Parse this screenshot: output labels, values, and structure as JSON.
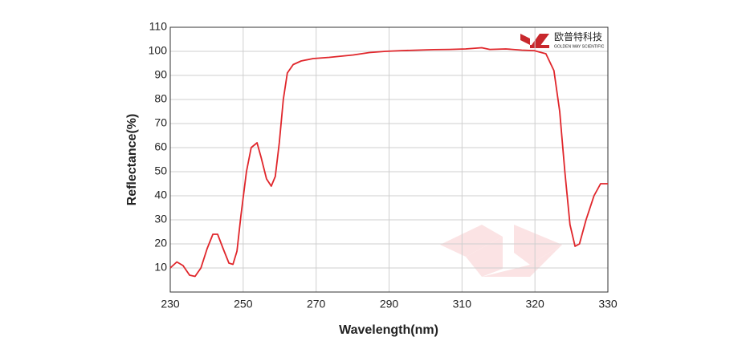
{
  "chart_data": {
    "type": "line",
    "xlabel": "Wavelength(nm)",
    "ylabel": "Reflectance(%)",
    "logo": {
      "name": "欧普特科技",
      "subtitle": "GOLDEN WAY SCIENTIFIC"
    },
    "x_scale": "piecewise",
    "x": [
      230,
      231.8,
      233.5,
      235.3,
      236.8,
      238.4,
      240.1,
      241.7,
      243.0,
      244.5,
      246.1,
      247.2,
      248.3,
      249.4,
      250.9,
      252.2,
      253.8,
      254.9,
      256.4,
      257.7,
      258.8,
      259.9,
      261.0,
      262.1,
      263.7,
      265.9,
      269.2,
      273.6,
      276.9,
      280.2,
      284.6,
      289.0,
      293.4,
      297.8,
      302.2,
      306.6,
      310.5,
      312.7,
      313.8,
      316.0,
      318.2,
      319.9,
      321.5,
      322.6,
      323.4,
      324.1,
      324.8,
      325.5,
      326.1,
      327.0,
      328.1,
      329.0,
      330
    ],
    "series": [
      {
        "name": "Reflectance",
        "color": "#e0262b",
        "values": [
          10,
          12.5,
          11,
          7,
          6.5,
          10,
          18,
          24,
          24,
          18,
          12,
          11.5,
          17,
          32,
          50,
          60,
          62,
          56,
          47,
          44,
          48,
          62,
          80,
          91,
          94.5,
          96,
          97,
          97.5,
          98,
          98.5,
          99.5,
          100,
          100.3,
          100.5,
          100.7,
          100.8,
          101,
          101.5,
          100.8,
          101,
          100.5,
          100.3,
          99,
          92,
          75,
          50,
          28,
          19,
          20,
          30,
          40,
          45,
          45
        ]
      }
    ],
    "xlim": [
      230,
      330
    ],
    "xticks": [
      230,
      250,
      270,
      290,
      310,
      320,
      330
    ],
    "ylim": [
      0,
      110
    ],
    "yticks": [
      10,
      20,
      30,
      40,
      50,
      60,
      70,
      80,
      90,
      100,
      110
    ],
    "grid": true
  }
}
